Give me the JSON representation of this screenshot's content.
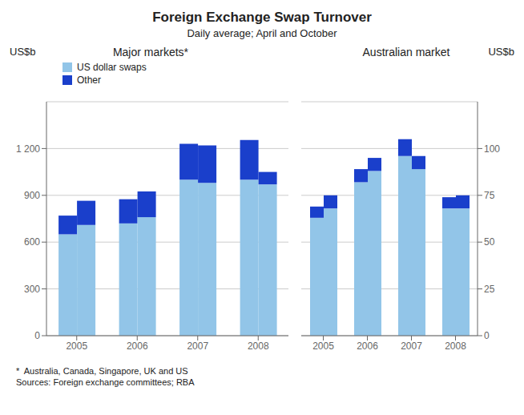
{
  "title": "Foreign Exchange Swap Turnover",
  "subtitle": "Daily average; April and October",
  "annotations": [
    "*  Australia, Canada, Singapore, UK and US",
    "Sources: Foreign exchange committees; RBA"
  ],
  "chart_data": [
    {
      "type": "bar",
      "title": "Major markets*",
      "ylabel": "US$b",
      "categories": [
        "2005",
        "2006",
        "2007",
        "2008"
      ],
      "series": [
        {
          "name": "US dollar swaps",
          "color": "#92C5E8",
          "values": [
            [
              650,
              710
            ],
            [
              720,
              760
            ],
            [
              1000,
              980
            ],
            [
              1000,
              970
            ]
          ]
        },
        {
          "name": "Other",
          "color": "#1A3FCB",
          "values": [
            [
              120,
              155
            ],
            [
              155,
              165
            ],
            [
              230,
              240
            ],
            [
              255,
              80
            ]
          ]
        }
      ],
      "stacked": true,
      "ylim": [
        0,
        1500
      ],
      "yticks": [
        0,
        300,
        600,
        900,
        {
          "value": 1200,
          "label": "1 200"
        }
      ],
      "grid": true,
      "legend": "upper left"
    },
    {
      "type": "bar",
      "title": "Australian market",
      "ylabel": "US$b",
      "categories": [
        "2005",
        "2006",
        "2007",
        "2008"
      ],
      "series": [
        {
          "name": "US dollar swaps",
          "color": "#92C5E8",
          "values": [
            [
              63,
              68
            ],
            [
              82,
              88
            ],
            [
              96,
              89
            ],
            [
              68,
              68
            ]
          ]
        },
        {
          "name": "Other",
          "color": "#1A3FCB",
          "values": [
            [
              6,
              7
            ],
            [
              7,
              7
            ],
            [
              9,
              7
            ],
            [
              6,
              7
            ]
          ]
        }
      ],
      "stacked": true,
      "ylim": [
        0,
        125
      ],
      "yticks": [
        0,
        25,
        50,
        75,
        100
      ],
      "grid": true
    }
  ]
}
